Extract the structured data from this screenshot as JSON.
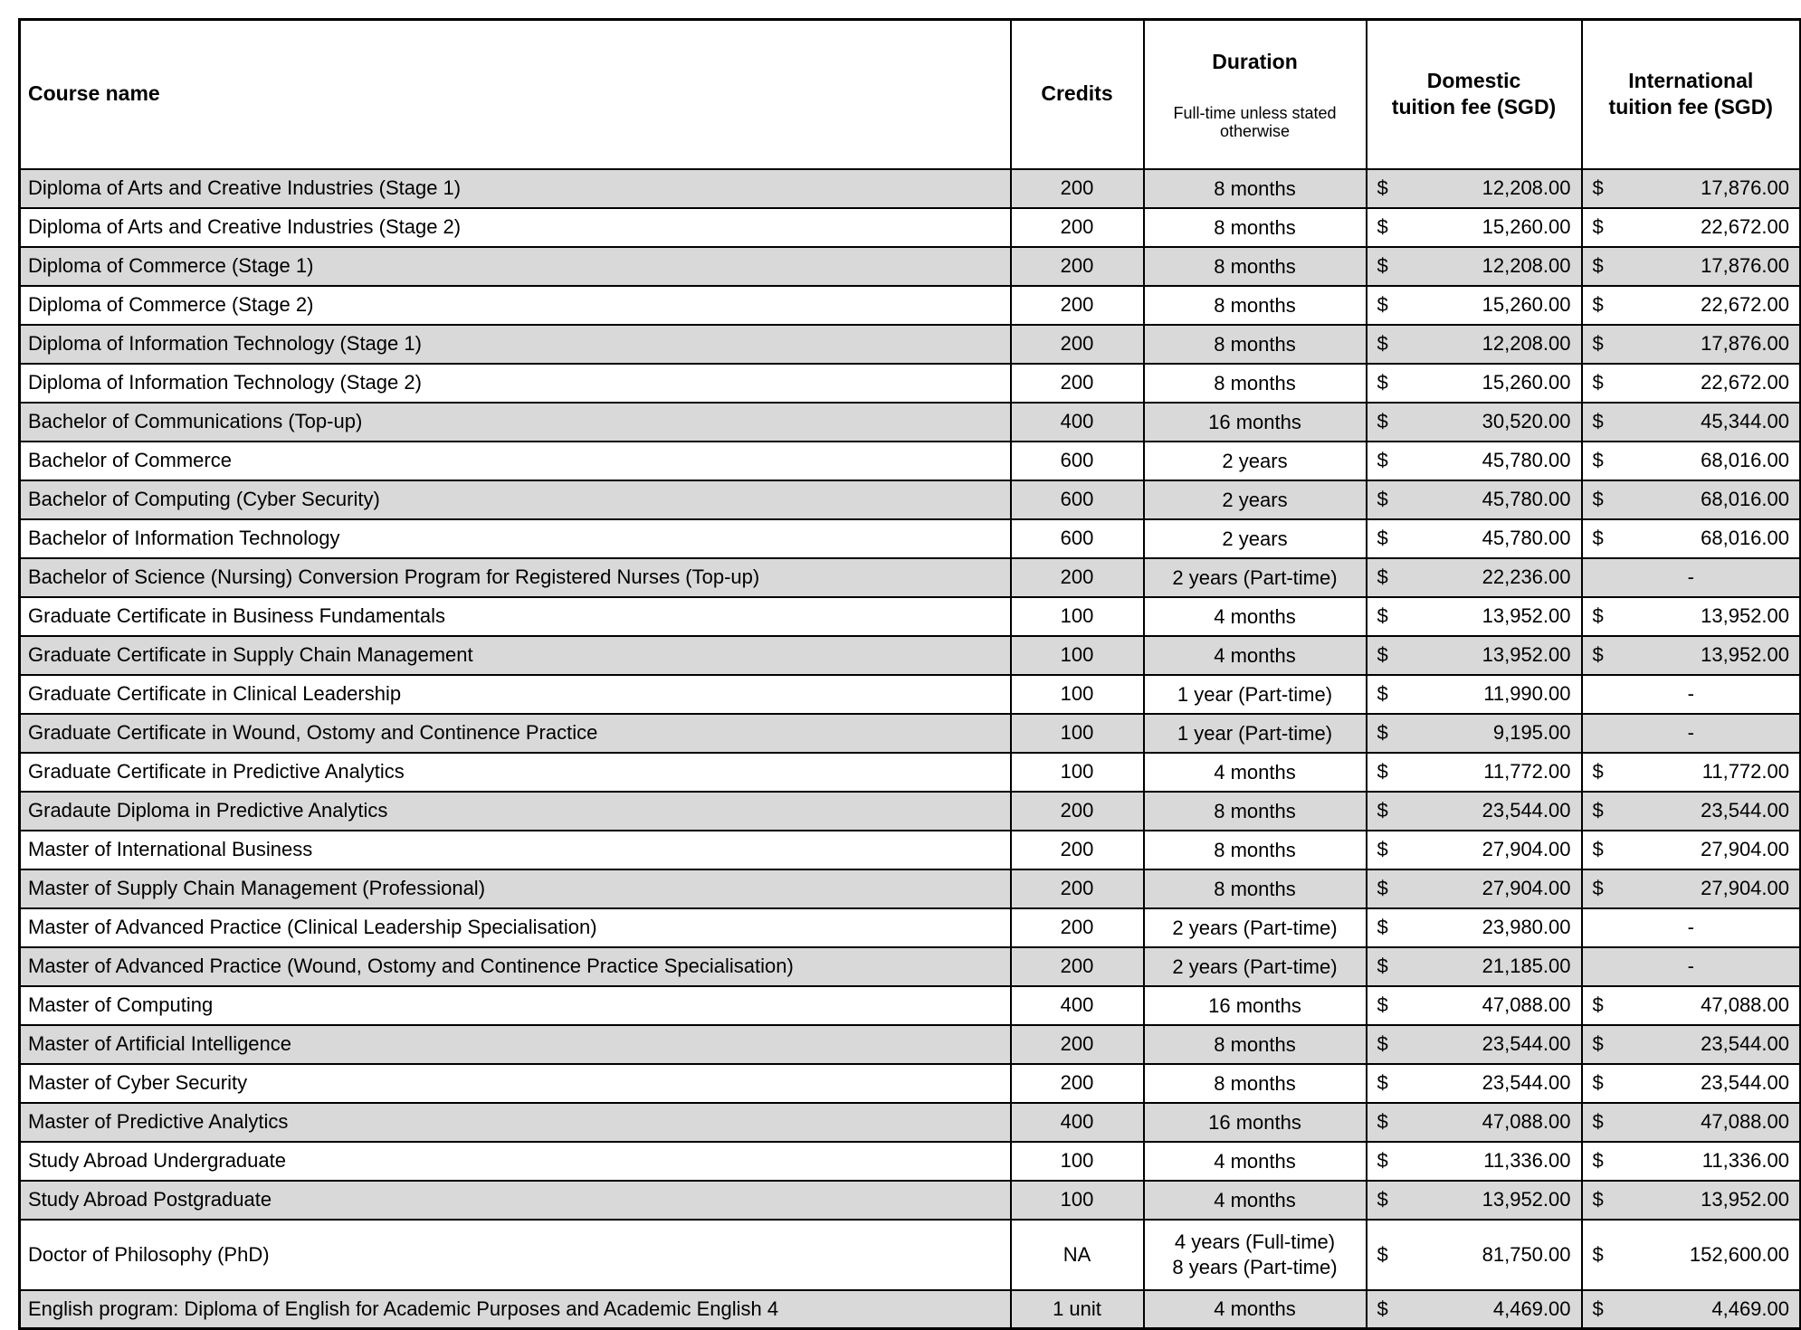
{
  "table": {
    "currency_symbol": "$",
    "empty_value": "-",
    "colors": {
      "shaded_row": "#d9d9d9",
      "plain_row": "#ffffff",
      "border": "#000000",
      "text": "#000000"
    },
    "columns": {
      "course": "Course name",
      "credits": "Credits",
      "duration_title": "Duration",
      "duration_sub": "Full-time unless stated otherwise",
      "domestic": "Domestic\ntuition fee (SGD)",
      "international": "International\ntuition fee (SGD)"
    },
    "rows": [
      {
        "course": "Diploma of Arts and Creative Industries (Stage 1)",
        "credits": "200",
        "duration": "8 months",
        "domestic": "12,208.00",
        "international": "17,876.00"
      },
      {
        "course": "Diploma of Arts and Creative Industries (Stage 2)",
        "credits": "200",
        "duration": "8 months",
        "domestic": "15,260.00",
        "international": "22,672.00"
      },
      {
        "course": "Diploma of Commerce (Stage 1)",
        "credits": "200",
        "duration": "8 months",
        "domestic": "12,208.00",
        "international": "17,876.00"
      },
      {
        "course": "Diploma of Commerce (Stage 2)",
        "credits": "200",
        "duration": "8 months",
        "domestic": "15,260.00",
        "international": "22,672.00"
      },
      {
        "course": "Diploma of Information Technology (Stage 1)",
        "credits": "200",
        "duration": "8 months",
        "domestic": "12,208.00",
        "international": "17,876.00"
      },
      {
        "course": "Diploma of Information Technology (Stage 2)",
        "credits": "200",
        "duration": "8 months",
        "domestic": "15,260.00",
        "international": "22,672.00"
      },
      {
        "course": "Bachelor of Communications (Top-up)",
        "credits": "400",
        "duration": "16 months",
        "domestic": "30,520.00",
        "international": "45,344.00"
      },
      {
        "course": "Bachelor of Commerce",
        "credits": "600",
        "duration": "2 years",
        "domestic": "45,780.00",
        "international": "68,016.00"
      },
      {
        "course": "Bachelor of Computing (Cyber Security)",
        "credits": "600",
        "duration": "2 years",
        "domestic": "45,780.00",
        "international": "68,016.00"
      },
      {
        "course": "Bachelor of Information Technology",
        "credits": "600",
        "duration": "2 years",
        "domestic": "45,780.00",
        "international": "68,016.00"
      },
      {
        "course": "Bachelor of Science (Nursing) Conversion Program for Registered Nurses (Top-up)",
        "credits": "200",
        "duration": "2 years (Part-time)",
        "domestic": "22,236.00",
        "international": null
      },
      {
        "course": "Graduate Certificate in Business Fundamentals",
        "credits": "100",
        "duration": "4 months",
        "domestic": "13,952.00",
        "international": "13,952.00"
      },
      {
        "course": "Graduate Certificate in Supply Chain Management",
        "credits": "100",
        "duration": "4 months",
        "domestic": "13,952.00",
        "international": "13,952.00"
      },
      {
        "course": "Graduate Certificate in Clinical Leadership",
        "credits": "100",
        "duration": "1 year (Part-time)",
        "domestic": "11,990.00",
        "international": null
      },
      {
        "course": "Graduate Certificate in Wound, Ostomy and Continence Practice",
        "credits": "100",
        "duration": "1 year (Part-time)",
        "domestic": "9,195.00",
        "international": null
      },
      {
        "course": "Graduate Certificate in Predictive Analytics",
        "credits": "100",
        "duration": "4 months",
        "domestic": "11,772.00",
        "international": "11,772.00"
      },
      {
        "course": "Gradaute Diploma in Predictive Analytics",
        "credits": "200",
        "duration": "8 months",
        "domestic": "23,544.00",
        "international": "23,544.00"
      },
      {
        "course": "Master of International Business",
        "credits": "200",
        "duration": "8 months",
        "domestic": "27,904.00",
        "international": "27,904.00"
      },
      {
        "course": "Master of Supply Chain Management (Professional)",
        "credits": "200",
        "duration": "8 months",
        "domestic": "27,904.00",
        "international": "27,904.00"
      },
      {
        "course": "Master of Advanced Practice (Clinical Leadership Specialisation)",
        "credits": "200",
        "duration": "2 years (Part-time)",
        "domestic": "23,980.00",
        "international": null
      },
      {
        "course": "Master of Advanced Practice (Wound, Ostomy and Continence Practice Specialisation)",
        "credits": "200",
        "duration": "2 years (Part-time)",
        "domestic": "21,185.00",
        "international": null
      },
      {
        "course": "Master of Computing",
        "credits": "400",
        "duration": "16 months",
        "domestic": "47,088.00",
        "international": "47,088.00"
      },
      {
        "course": "Master of Artificial Intelligence",
        "credits": "200",
        "duration": "8 months",
        "domestic": "23,544.00",
        "international": "23,544.00"
      },
      {
        "course": "Master of Cyber Security",
        "credits": "200",
        "duration": "8 months",
        "domestic": "23,544.00",
        "international": "23,544.00"
      },
      {
        "course": "Master of Predictive Analytics",
        "credits": "400",
        "duration": "16 months",
        "domestic": "47,088.00",
        "international": "47,088.00"
      },
      {
        "course": "Study Abroad Undergraduate",
        "credits": "100",
        "duration": "4 months",
        "domestic": "11,336.00",
        "international": "11,336.00"
      },
      {
        "course": "Study Abroad Postgraduate",
        "credits": "100",
        "duration": "4 months",
        "domestic": "13,952.00",
        "international": "13,952.00"
      },
      {
        "course": "Doctor of Philosophy (PhD)",
        "credits": "NA",
        "duration": "4 years (Full-time)\n8 years (Part-time)",
        "domestic": "81,750.00",
        "international": "152,600.00",
        "tall": true
      },
      {
        "course": "English program: Diploma of English for Academic Purposes and Academic English 4",
        "credits": "1 unit",
        "duration": "4 months",
        "domestic": "4,469.00",
        "international": "4,469.00"
      }
    ]
  }
}
